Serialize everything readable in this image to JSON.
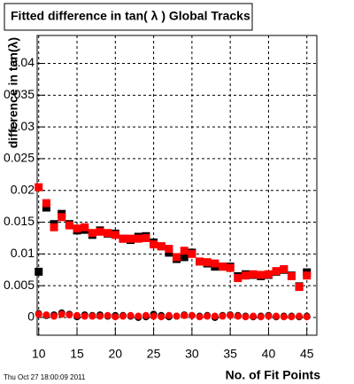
{
  "chart_data": {
    "type": "scatter",
    "title": "Fitted difference in tan( λ )  Global Tracks",
    "y_label": "difference in tan(λ)",
    "x_label": "No. of Fit Points",
    "timestamp": "Thu Oct 27 18:00:09 2011",
    "x": [
      10,
      11,
      12,
      13,
      14,
      15,
      16,
      17,
      18,
      19,
      20,
      21,
      22,
      23,
      24,
      25,
      26,
      27,
      28,
      29,
      30,
      31,
      32,
      33,
      34,
      35,
      36,
      37,
      38,
      39,
      40,
      41,
      42,
      43,
      44,
      45
    ],
    "series": [
      {
        "color": "#000000",
        "marker": "square",
        "values": [
          0.0072,
          0.0173,
          0.0147,
          0.0163,
          0.0147,
          0.0137,
          0.0138,
          0.013,
          0.0137,
          0.0132,
          0.0132,
          0.0124,
          0.0122,
          0.0127,
          0.0128,
          0.0118,
          0.0112,
          0.0102,
          0.0092,
          0.0095,
          0.0102,
          0.0088,
          0.0085,
          0.008,
          0.008,
          0.008,
          0.0065,
          0.0068,
          0.0067,
          0.0065,
          0.0067,
          0.0072,
          0.0075,
          0.0066,
          0.0049,
          0.0071
        ]
      },
      {
        "color": "#000000",
        "marker": "circle",
        "values": [
          0.0006,
          0.0003,
          0.0004,
          0.0007,
          0.0005,
          0.0001,
          0.0004,
          0.0003,
          0.0004,
          0.0002,
          0.0003,
          0.0003,
          0.0002,
          0.0,
          0.0001,
          0.0005,
          0.0003,
          0.0001,
          0.0002,
          0.0004,
          0.0003,
          0.0002,
          0.0003,
          0.0,
          0.0003,
          0.0004,
          0.0003,
          0.0002,
          0.0001,
          0.0002,
          0.0003,
          0.0001,
          0.0002,
          0.0002,
          0.0001,
          0.0002
        ]
      },
      {
        "color": "#ff0000",
        "marker": "square",
        "values": [
          0.0205,
          0.018,
          0.0142,
          0.0158,
          0.0145,
          0.014,
          0.0142,
          0.0133,
          0.0135,
          0.0133,
          0.013,
          0.0124,
          0.0124,
          0.0124,
          0.0125,
          0.0115,
          0.0112,
          0.0108,
          0.0095,
          0.0105,
          0.01,
          0.0088,
          0.0087,
          0.0085,
          0.008,
          0.0078,
          0.0062,
          0.0066,
          0.0068,
          0.0067,
          0.0068,
          0.0073,
          0.0076,
          0.0065,
          0.0048,
          0.0066
        ]
      },
      {
        "color": "#ff0000",
        "marker": "circle",
        "values": [
          0.0005,
          0.0004,
          0.0002,
          0.0005,
          0.0004,
          0.0003,
          0.0002,
          0.0002,
          0.0002,
          0.0003,
          0.0001,
          0.0002,
          0.0003,
          0.0002,
          0.0003,
          0.0002,
          0.0001,
          0.0003,
          0.0002,
          0.0003,
          0.0003,
          0.0001,
          0.0002,
          0.0002,
          0.0002,
          0.0003,
          0.0002,
          0.0001,
          0.0002,
          0.0001,
          0.0002,
          0.0002,
          0.0001,
          0.0001,
          0.0002,
          0.0001
        ]
      }
    ],
    "xlim": [
      9.8,
      46.3
    ],
    "xticks": [
      10,
      15,
      20,
      25,
      30,
      35,
      40,
      45
    ],
    "ylim": [
      -0.0028,
      0.0444
    ],
    "yticks": [
      0,
      0.005,
      0.01,
      0.015,
      0.02,
      0.025,
      0.03,
      0.035,
      0.04
    ],
    "grid": true
  }
}
